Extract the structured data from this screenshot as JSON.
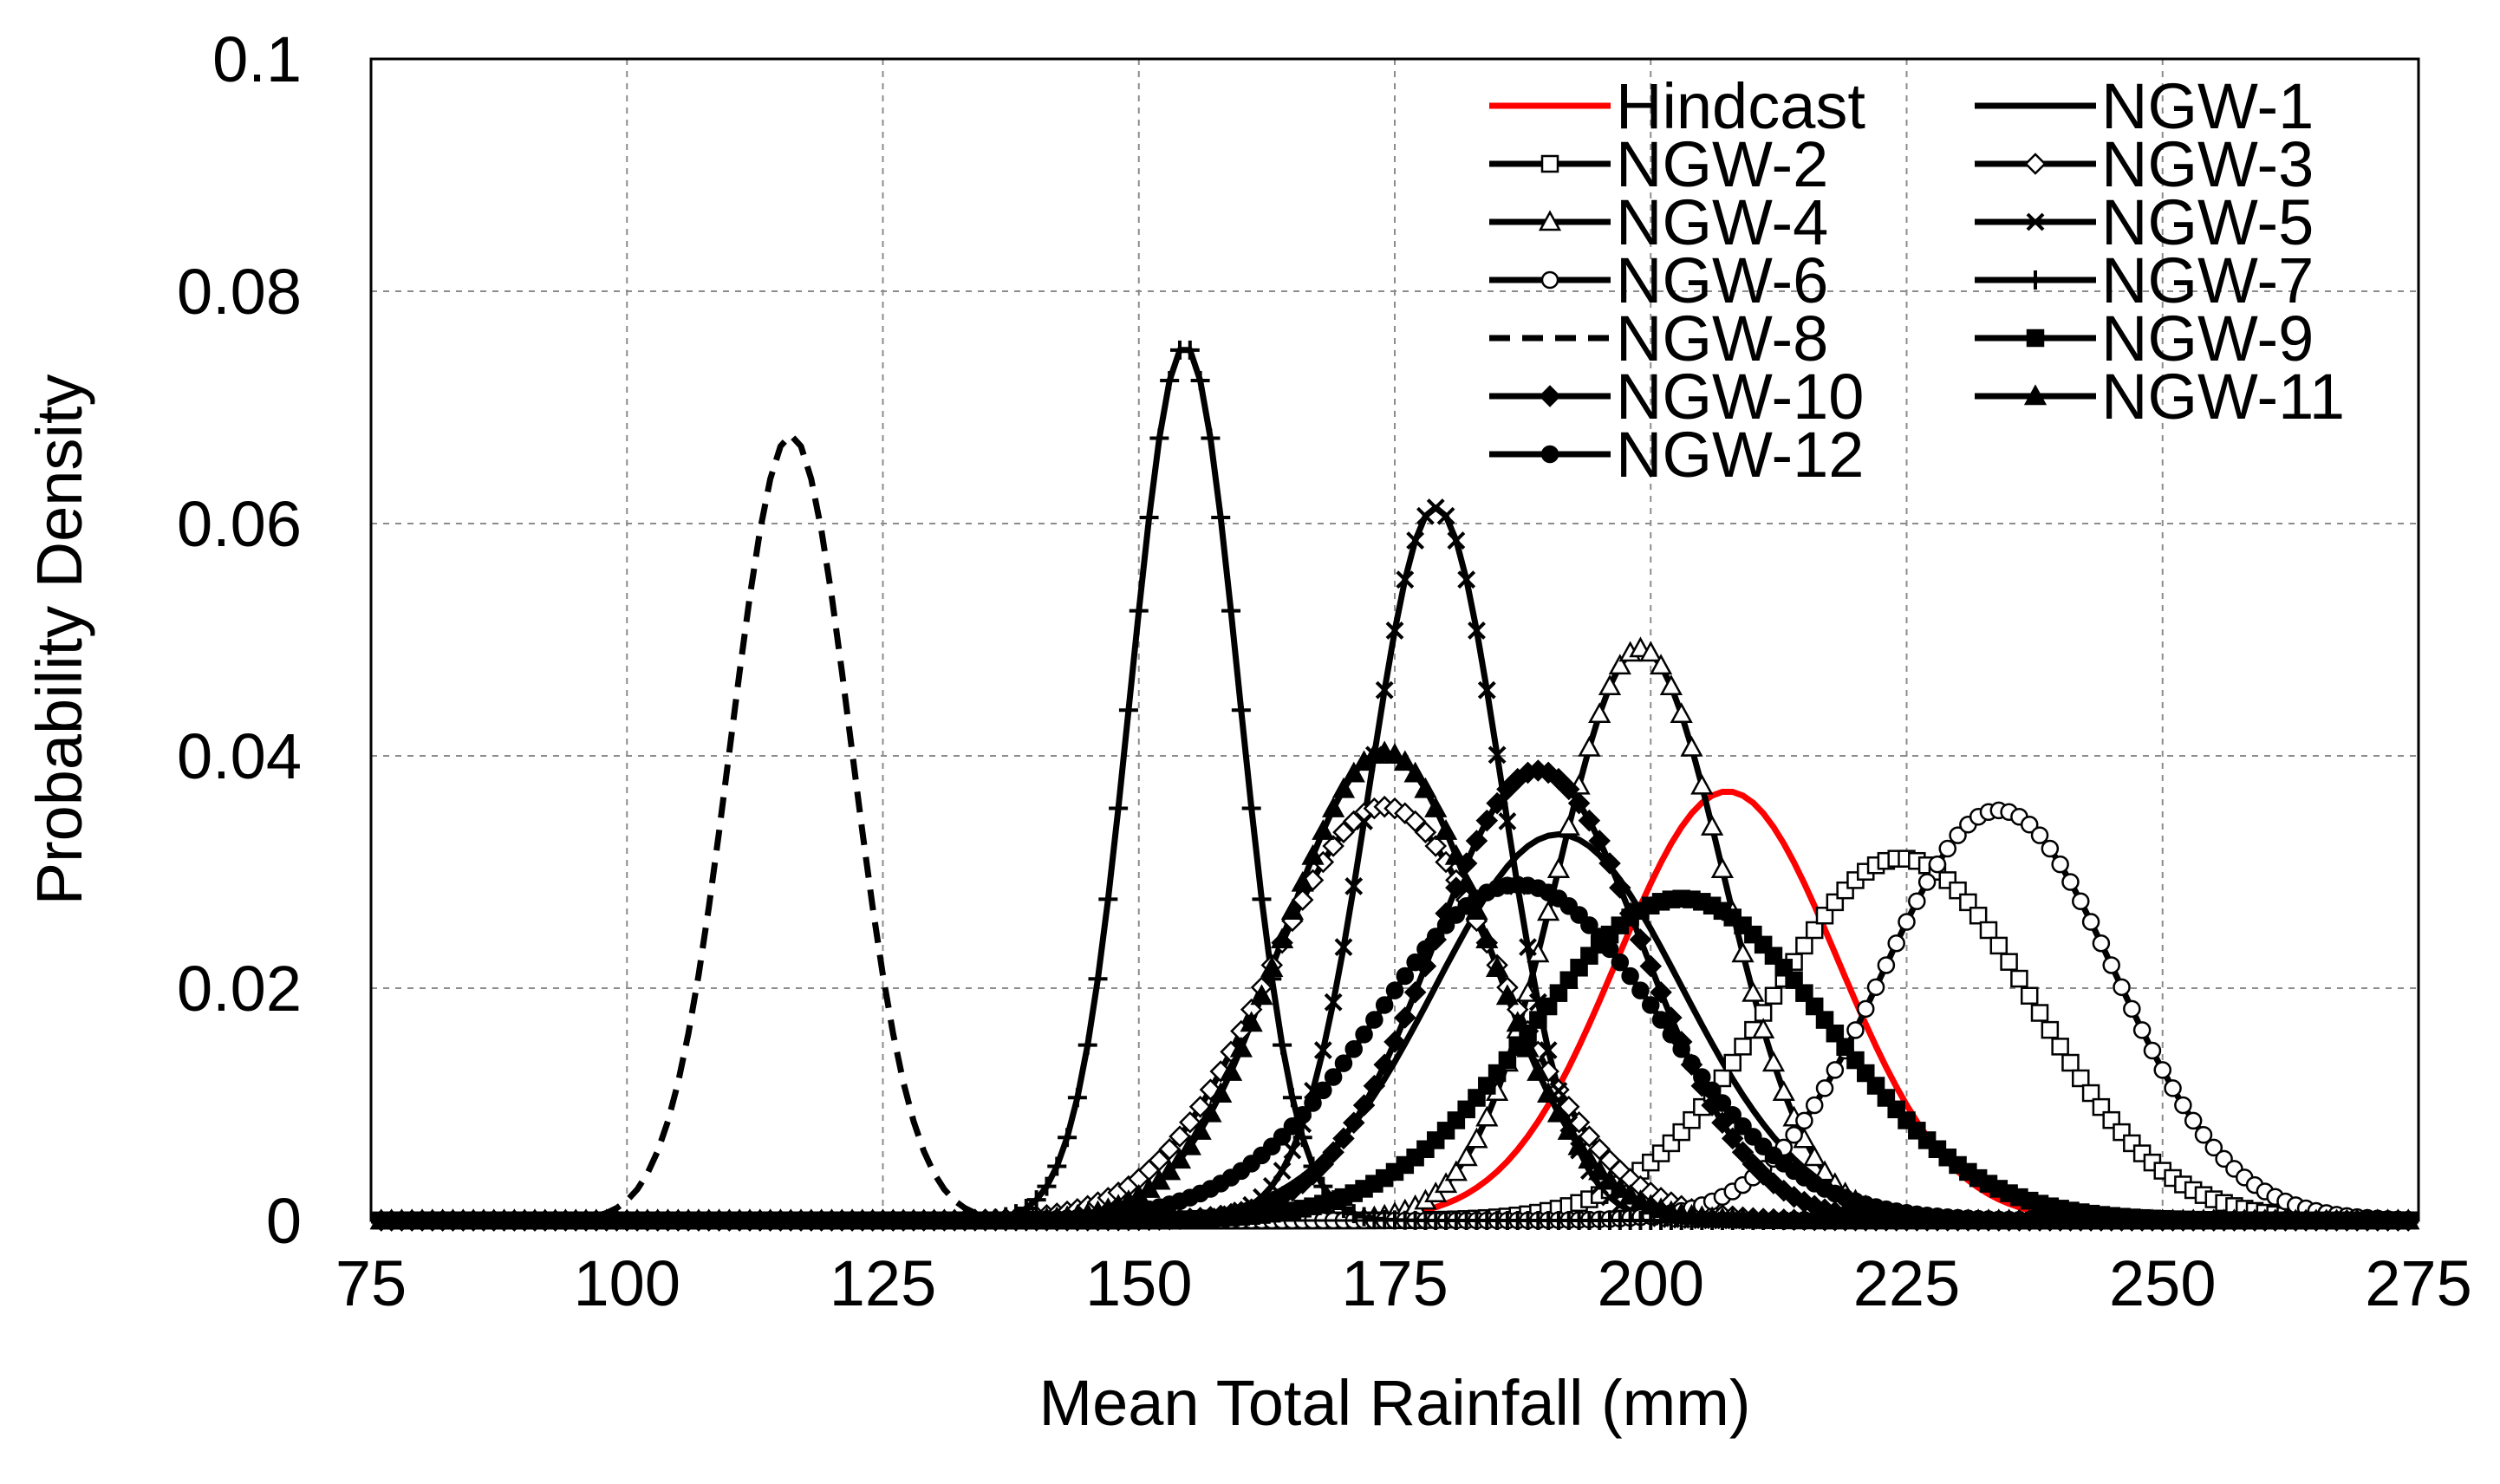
{
  "chart_data": {
    "type": "line",
    "xlabel": "Mean Total Rainfall (mm)",
    "ylabel": "Probability Density",
    "xlim": [
      75,
      275
    ],
    "ylim": [
      0,
      0.1
    ],
    "xticks": [
      75,
      100,
      125,
      150,
      175,
      200,
      225,
      250,
      275
    ],
    "xtick_labels": [
      "75",
      "100",
      "125",
      "150",
      "175",
      "200",
      "225",
      "250",
      "275"
    ],
    "yticks": [
      0,
      0.02,
      0.04,
      0.06,
      0.08,
      0.1
    ],
    "ytick_labels": [
      "0",
      "0.02",
      "0.04",
      "0.06",
      "0.08",
      "0.1"
    ],
    "grid": true,
    "legend_position": "top-right",
    "x_sampling": {
      "start": 75,
      "end": 275,
      "step": 1
    },
    "series": [
      {
        "name": "Hindcast",
        "mean": 207.5,
        "sd": 10.8,
        "color": "#ff0000",
        "dash": "solid",
        "marker": "none"
      },
      {
        "name": "NGW-1",
        "mean": 191,
        "sd": 12.0,
        "color": "#000000",
        "dash": "solid",
        "marker": "none"
      },
      {
        "name": "NGW-2",
        "mean": 224.5,
        "sd": 12.8,
        "color": "#000000",
        "dash": "solid",
        "marker": "square-open"
      },
      {
        "name": "NGW-3",
        "mean": 174,
        "sd": 11.2,
        "color": "#000000",
        "dash": "solid",
        "marker": "diamond-open"
      },
      {
        "name": "NGW-4",
        "mean": 199,
        "sd": 8.1,
        "color": "#000000",
        "dash": "solid",
        "marker": "triangle-open"
      },
      {
        "name": "NGW-5",
        "mean": 179,
        "sd": 6.5,
        "color": "#000000",
        "dash": "solid",
        "marker": "x"
      },
      {
        "name": "NGW-6",
        "mean": 234,
        "sd": 11.3,
        "color": "#000000",
        "dash": "solid",
        "marker": "circle-open"
      },
      {
        "name": "NGW-7",
        "mean": 154.5,
        "sd": 5.3,
        "color": "#000000",
        "dash": "solid",
        "marker": "plus"
      },
      {
        "name": "NGW-8",
        "mean": 116,
        "sd": 5.9,
        "color": "#000000",
        "dash": "dashed",
        "marker": "none"
      },
      {
        "name": "NGW-9",
        "mean": 203,
        "sd": 14.4,
        "color": "#000000",
        "dash": "solid",
        "marker": "square-filled"
      },
      {
        "name": "NGW-10",
        "mean": 189,
        "sd": 10.3,
        "color": "#000000",
        "dash": "solid",
        "marker": "diamond-filled"
      },
      {
        "name": "NGW-11",
        "mean": 174,
        "sd": 9.9,
        "color": "#000000",
        "dash": "solid",
        "marker": "triangle-filled"
      },
      {
        "name": "NGW-12",
        "mean": 187,
        "sd": 13.8,
        "color": "#000000",
        "dash": "solid",
        "marker": "circle-filled"
      }
    ]
  }
}
